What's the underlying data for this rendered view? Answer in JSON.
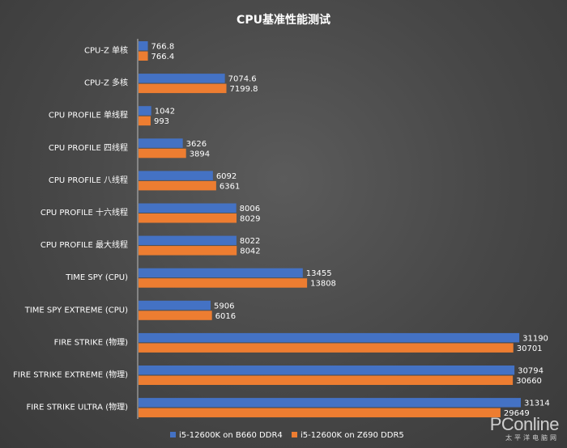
{
  "chart_data": {
    "type": "bar",
    "orientation": "horizontal",
    "title": "CPU基准性能测试",
    "categories": [
      "CPU-Z 单核",
      "CPU-Z 多核",
      "CPU PROFILE 单线程",
      "CPU PROFILE 四线程",
      "CPU PROFILE 八线程",
      "CPU PROFILE 十六线程",
      "CPU PROFILE 最大线程",
      "TIME SPY (CPU)",
      "TIME SPY EXTREME (CPU)",
      "FIRE STRIKE (物理)",
      "FIRE STRIKE EXTREME (物理)",
      "FIRE STRIKE ULTRA (物理)"
    ],
    "series": [
      {
        "name": "i5-12600K on B660 DDR4",
        "color": "#4472c4",
        "values": [
          766.8,
          7074.6,
          1042,
          3626,
          6092,
          8006,
          8022,
          13455,
          5906,
          31190,
          30794,
          31314
        ],
        "labels": [
          "766.8",
          "7074.6",
          "1042",
          "3626",
          "6092",
          "8006",
          "8022",
          "13455",
          "5906",
          "31190",
          "30794",
          "31314"
        ]
      },
      {
        "name": "i5-12600K on Z690 DDR5",
        "color": "#ed7d31",
        "values": [
          766.4,
          7199.8,
          993,
          3894,
          6361,
          8029,
          8042,
          13808,
          6016,
          30701,
          30660,
          29649
        ],
        "labels": [
          "766.4",
          "7199.8",
          "993",
          "3894",
          "6361",
          "8029",
          "8042",
          "13808",
          "6016",
          "30701",
          "30660",
          "29649"
        ]
      }
    ],
    "xlim": [
      0,
      34500
    ],
    "grid": false,
    "legend_position": "bottom"
  },
  "watermark": {
    "brand": "PConline",
    "sub": "太平洋电脑网"
  }
}
